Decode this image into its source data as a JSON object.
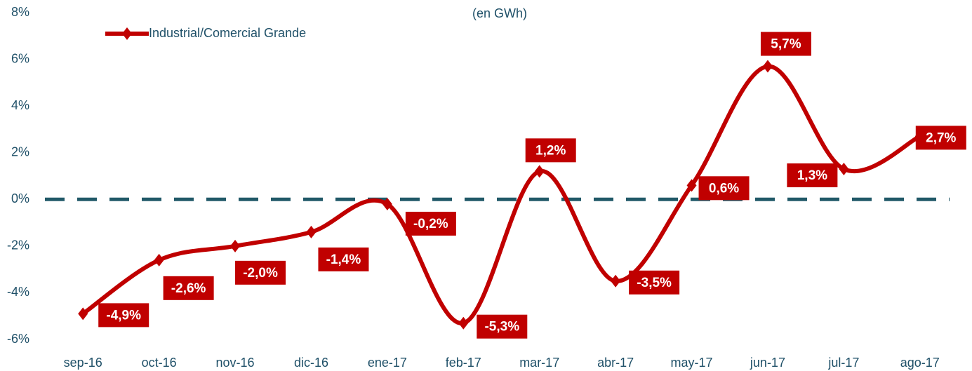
{
  "chart_data": {
    "type": "line",
    "subtitle": "(en GWh)",
    "categories": [
      "sep-16",
      "oct-16",
      "nov-16",
      "dic-16",
      "ene-17",
      "feb-17",
      "mar-17",
      "abr-17",
      "may-17",
      "jun-17",
      "jul-17",
      "ago-17"
    ],
    "series": [
      {
        "name": "Industrial/Comercial Grande",
        "color": "#c00000",
        "values": [
          -4.9,
          -2.6,
          -2.0,
          -1.4,
          -0.2,
          -5.3,
          1.2,
          -3.5,
          0.6,
          5.7,
          1.3,
          2.7
        ],
        "value_labels": [
          "-4,9%",
          "-2,6%",
          "-2,0%",
          "-1,4%",
          "-0,2%",
          "-5,3%",
          "1,2%",
          "-3,5%",
          "0,6%",
          "5,7%",
          "1,3%",
          "2,7%"
        ]
      }
    ],
    "ylim": [
      -6,
      8
    ],
    "yticks": [
      {
        "value": -6,
        "label": "-6%"
      },
      {
        "value": -4,
        "label": "-4%"
      },
      {
        "value": -2,
        "label": "-2%"
      },
      {
        "value": 0,
        "label": "0%"
      },
      {
        "value": 2,
        "label": "2%"
      },
      {
        "value": 4,
        "label": "4%"
      },
      {
        "value": 6,
        "label": "6%"
      },
      {
        "value": 8,
        "label": "8%"
      }
    ],
    "reference_line_color": "#215968",
    "legend": "top-left"
  }
}
